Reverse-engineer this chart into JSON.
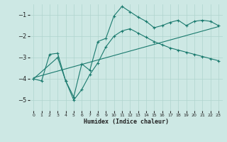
{
  "xlabel": "Humidex (Indice chaleur)",
  "bg_color": "#cde8e4",
  "grid_color": "#b0d4ce",
  "line_color": "#1a7a6e",
  "xlim": [
    -0.5,
    23.5
  ],
  "ylim": [
    -5.5,
    -0.5
  ],
  "yticks": [
    -5,
    -4,
    -3,
    -2,
    -1
  ],
  "xticks": [
    0,
    1,
    2,
    3,
    4,
    5,
    6,
    7,
    8,
    9,
    10,
    11,
    12,
    13,
    14,
    15,
    16,
    17,
    18,
    19,
    20,
    21,
    22,
    23
  ],
  "line1_x": [
    0,
    1,
    2,
    3,
    4,
    5,
    6,
    7,
    8,
    9,
    10,
    11,
    12,
    13,
    14,
    15,
    16,
    17,
    18,
    19,
    20,
    21,
    22,
    23
  ],
  "line1_y": [
    -4.0,
    -4.1,
    -2.85,
    -2.8,
    -4.1,
    -4.85,
    -3.3,
    -3.6,
    -2.25,
    -2.1,
    -1.05,
    -0.6,
    -0.85,
    -1.1,
    -1.3,
    -1.6,
    -1.5,
    -1.35,
    -1.25,
    -1.5,
    -1.3,
    -1.25,
    -1.3,
    -1.5
  ],
  "line2_x": [
    0,
    3,
    4,
    5,
    6,
    7,
    8,
    9,
    10,
    11,
    12,
    13,
    14,
    15,
    16,
    17,
    18,
    19,
    20,
    21,
    22,
    23
  ],
  "line2_y": [
    -4.0,
    -3.0,
    -4.1,
    -5.0,
    -4.5,
    -3.8,
    -3.25,
    -2.5,
    -2.0,
    -1.75,
    -1.65,
    -1.85,
    -2.05,
    -2.25,
    -2.4,
    -2.55,
    -2.65,
    -2.75,
    -2.85,
    -2.95,
    -3.05,
    -3.15
  ],
  "line3_x": [
    0,
    23
  ],
  "line3_y": [
    -3.95,
    -1.55
  ]
}
